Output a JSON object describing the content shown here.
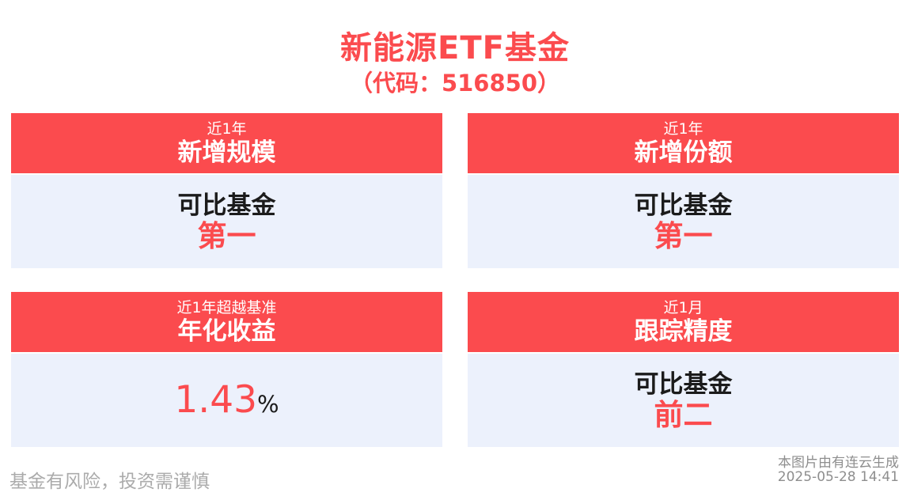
{
  "page": {
    "title": "新能源ETF基金",
    "subtitle": "（代码：516850）",
    "accent_color": "#FB4B4E",
    "card_body_bg": "#ECF1FC"
  },
  "cards": [
    {
      "period": "近1年",
      "metric": "新增规模",
      "body_label": "可比基金",
      "value": "第一"
    },
    {
      "period": "近1年",
      "metric": "新增份额",
      "body_label": "可比基金",
      "value": "第一"
    },
    {
      "period": "近1年超越基准",
      "metric": "年化收益",
      "value": "1.43",
      "unit": "%"
    },
    {
      "period": "近1月",
      "metric": "跟踪精度",
      "body_label": "可比基金",
      "value": "前二"
    }
  ],
  "footer": {
    "disclaimer": "基金有风险，投资需谨慎",
    "source": "本图片由有连云生成",
    "timestamp": "2025-05-28 14:41"
  }
}
